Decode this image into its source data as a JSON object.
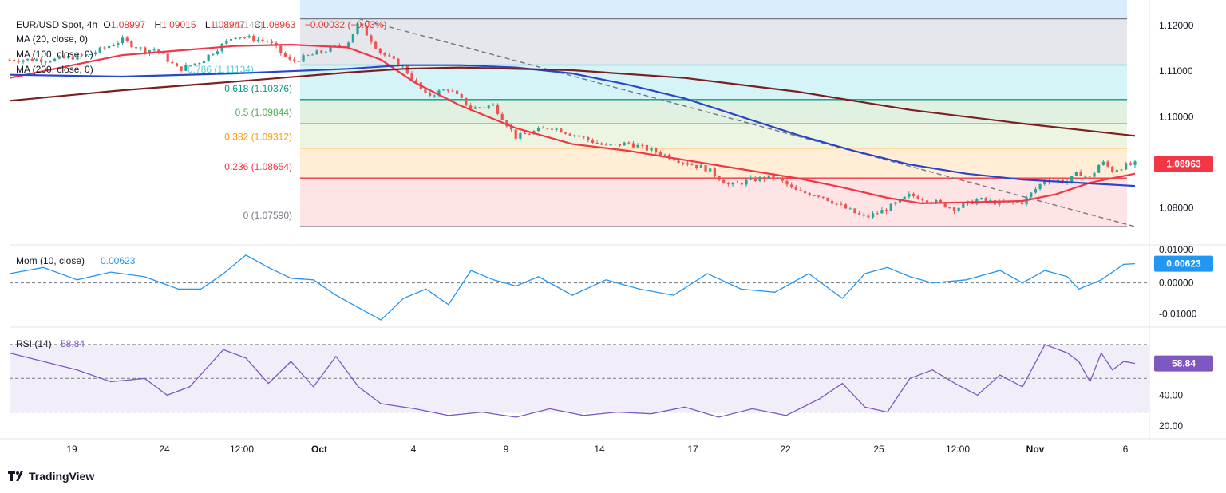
{
  "header": {
    "symbol": "EUR/USD Spot, 4h",
    "open_label": "O",
    "open": "1.08997",
    "high_label": "H",
    "high": "1.09015",
    "low_label": "L",
    "low": "1.08947",
    "close_label": "C",
    "close": "1.08963",
    "change": "−0.00032 (−0.03%)",
    "ma20": "MA (20, close, 0)",
    "ma100": "MA (100, close, 0)",
    "ma200": "MA (200, close, 0)",
    "fib_top_label": "1 (1.12148)",
    "fib_786_label": "0.786 (1.11134)"
  },
  "colors": {
    "bull": "#26a69a",
    "bear": "#ef5350",
    "ma20": "#f23645",
    "ma100": "#2a46c8",
    "ma200": "#7b1f1f",
    "momentum": "#2196f3",
    "rsi": "#7e57c2",
    "price_tag": "#f23645"
  },
  "chart_data": [
    {
      "type": "candlestick",
      "title": "EUR/USD Spot, 4h",
      "ylim": [
        1.0759,
        1.1235
      ],
      "yticks": [
        "1.12000",
        "1.11000",
        "1.10000",
        "1.09000",
        "1.08000"
      ],
      "xticks": [
        "19",
        "24",
        "12:00",
        "Oct",
        "4",
        "9",
        "14",
        "17",
        "22",
        "25",
        "12:00",
        "Nov",
        "6"
      ],
      "last_price": "1.08963",
      "fibonacci": [
        {
          "level": "1",
          "value": 1.12148,
          "label": "1 (1.12148)",
          "color": "#787b86"
        },
        {
          "level": "0.786",
          "value": 1.11134,
          "label": "0.786 (1.11134)",
          "color": "#00bcd4"
        },
        {
          "level": "0.618",
          "value": 1.10376,
          "label": "0.618 (1.10376)",
          "color": "#089981"
        },
        {
          "level": "0.5",
          "value": 1.09844,
          "label": "0.5 (1.09844)",
          "color": "#4caf50"
        },
        {
          "level": "0.382",
          "value": 1.09312,
          "label": "0.382 (1.09312)",
          "color": "#ff9800"
        },
        {
          "level": "0.236",
          "value": 1.08654,
          "label": "0.236 (1.08654)",
          "color": "#f23645"
        },
        {
          "level": "0",
          "value": 1.0759,
          "label": "0 (1.07590)",
          "color": "#787b86"
        }
      ],
      "trendline": {
        "from": [
          0.31,
          1.1215
        ],
        "to": [
          1.0,
          1.0759
        ]
      },
      "series": [
        {
          "name": "MA (20, close, 0)",
          "points": [
            [
              0,
              1.1085
            ],
            [
              0.05,
              1.111
            ],
            [
              0.1,
              1.1135
            ],
            [
              0.15,
              1.1145
            ],
            [
              0.2,
              1.1155
            ],
            [
              0.25,
              1.1158
            ],
            [
              0.3,
              1.1152
            ],
            [
              0.33,
              1.1125
            ],
            [
              0.36,
              1.1075
            ],
            [
              0.4,
              1.1025
            ],
            [
              0.45,
              1.0975
            ],
            [
              0.5,
              1.094
            ],
            [
              0.55,
              1.0925
            ],
            [
              0.6,
              1.0905
            ],
            [
              0.65,
              1.0885
            ],
            [
              0.7,
              1.0865
            ],
            [
              0.74,
              1.0845
            ],
            [
              0.78,
              1.0822
            ],
            [
              0.81,
              1.081
            ],
            [
              0.85,
              1.0812
            ],
            [
              0.9,
              1.0815
            ],
            [
              0.93,
              1.083
            ],
            [
              0.96,
              1.0855
            ],
            [
              1.0,
              1.0875
            ]
          ]
        },
        {
          "name": "MA (100, close, 0)",
          "points": [
            [
              0,
              1.1092
            ],
            [
              0.1,
              1.1088
            ],
            [
              0.2,
              1.1095
            ],
            [
              0.3,
              1.1105
            ],
            [
              0.35,
              1.1113
            ],
            [
              0.4,
              1.1113
            ],
            [
              0.45,
              1.1108
            ],
            [
              0.5,
              1.1095
            ],
            [
              0.55,
              1.107
            ],
            [
              0.6,
              1.104
            ],
            [
              0.65,
              1.1
            ],
            [
              0.7,
              1.096
            ],
            [
              0.75,
              1.0925
            ],
            [
              0.8,
              1.0895
            ],
            [
              0.85,
              1.0875
            ],
            [
              0.9,
              1.0862
            ],
            [
              0.95,
              1.0855
            ],
            [
              1.0,
              1.0848
            ]
          ]
        },
        {
          "name": "MA (200, close, 0)",
          "points": [
            [
              0,
              1.1035
            ],
            [
              0.1,
              1.1058
            ],
            [
              0.2,
              1.1077
            ],
            [
              0.3,
              1.1097
            ],
            [
              0.35,
              1.1105
            ],
            [
              0.4,
              1.1108
            ],
            [
              0.5,
              1.1102
            ],
            [
              0.6,
              1.1085
            ],
            [
              0.7,
              1.1055
            ],
            [
              0.8,
              1.1015
            ],
            [
              0.9,
              1.0985
            ],
            [
              1.0,
              1.0958
            ]
          ]
        }
      ],
      "candle_path": [
        [
          0,
          1.1125
        ],
        [
          0.04,
          1.1125
        ],
        [
          0.07,
          1.1135
        ],
        [
          0.1,
          1.1168
        ],
        [
          0.12,
          1.1145
        ],
        [
          0.13,
          1.1148
        ],
        [
          0.15,
          1.1103
        ],
        [
          0.17,
          1.1122
        ],
        [
          0.2,
          1.1178
        ],
        [
          0.23,
          1.1165
        ],
        [
          0.25,
          1.112
        ],
        [
          0.28,
          1.1145
        ],
        [
          0.3,
          1.116
        ],
        [
          0.31,
          1.1205
        ],
        [
          0.33,
          1.114
        ],
        [
          0.35,
          1.1108
        ],
        [
          0.37,
          1.1045
        ],
        [
          0.39,
          1.1062
        ],
        [
          0.41,
          1.1018
        ],
        [
          0.43,
          1.1025
        ],
        [
          0.45,
          1.0955
        ],
        [
          0.48,
          1.0978
        ],
        [
          0.5,
          1.0962
        ],
        [
          0.53,
          1.0935
        ],
        [
          0.55,
          1.0942
        ],
        [
          0.58,
          1.0918
        ],
        [
          0.6,
          1.09
        ],
        [
          0.62,
          1.0885
        ],
        [
          0.64,
          1.0848
        ],
        [
          0.66,
          1.0862
        ],
        [
          0.68,
          1.0868
        ],
        [
          0.7,
          1.0835
        ],
        [
          0.72,
          1.0828
        ],
        [
          0.74,
          1.0802
        ],
        [
          0.76,
          1.0778
        ],
        [
          0.78,
          1.0798
        ],
        [
          0.8,
          1.0828
        ],
        [
          0.82,
          1.0815
        ],
        [
          0.84,
          1.0798
        ],
        [
          0.86,
          1.0818
        ],
        [
          0.88,
          1.081
        ],
        [
          0.9,
          1.0812
        ],
        [
          0.92,
          1.0862
        ],
        [
          0.94,
          1.0858
        ],
        [
          0.95,
          1.0878
        ],
        [
          0.96,
          1.0865
        ],
        [
          0.97,
          1.0902
        ],
        [
          0.98,
          1.0882
        ],
        [
          0.99,
          1.0892
        ],
        [
          1.0,
          1.0896
        ]
      ]
    },
    {
      "type": "line",
      "name": "Mom (10, close)",
      "value_label": "0.00623",
      "ylim": [
        -0.013,
        0.011
      ],
      "yticks": [
        "0.01000",
        "0.00000",
        "-0.01000"
      ],
      "zero_line": 0,
      "values": [
        [
          0,
          0.003
        ],
        [
          0.03,
          0.005
        ],
        [
          0.06,
          0.001
        ],
        [
          0.09,
          0.0035
        ],
        [
          0.12,
          0.002
        ],
        [
          0.15,
          -0.002
        ],
        [
          0.17,
          -0.002
        ],
        [
          0.19,
          0.003
        ],
        [
          0.21,
          0.009
        ],
        [
          0.23,
          0.005
        ],
        [
          0.25,
          0.0015
        ],
        [
          0.27,
          0.001
        ],
        [
          0.29,
          -0.004
        ],
        [
          0.31,
          -0.008
        ],
        [
          0.33,
          -0.012
        ],
        [
          0.35,
          -0.005
        ],
        [
          0.37,
          -0.002
        ],
        [
          0.39,
          -0.007
        ],
        [
          0.41,
          0.004
        ],
        [
          0.43,
          0.001
        ],
        [
          0.45,
          -0.001
        ],
        [
          0.47,
          0.002
        ],
        [
          0.5,
          -0.004
        ],
        [
          0.53,
          0.001
        ],
        [
          0.56,
          -0.002
        ],
        [
          0.59,
          -0.004
        ],
        [
          0.62,
          0.003
        ],
        [
          0.65,
          -0.002
        ],
        [
          0.68,
          -0.003
        ],
        [
          0.71,
          0.003
        ],
        [
          0.74,
          -0.005
        ],
        [
          0.76,
          0.003
        ],
        [
          0.78,
          0.005
        ],
        [
          0.8,
          0.002
        ],
        [
          0.82,
          0.0
        ],
        [
          0.85,
          0.001
        ],
        [
          0.88,
          0.004
        ],
        [
          0.9,
          0.0
        ],
        [
          0.92,
          0.004
        ],
        [
          0.94,
          0.002
        ],
        [
          0.95,
          -0.002
        ],
        [
          0.97,
          0.001
        ],
        [
          0.99,
          0.006
        ],
        [
          1.0,
          0.0062
        ]
      ]
    },
    {
      "type": "line",
      "name": "RSI (14)",
      "value_label": "58.84",
      "ylim": [
        18,
        78
      ],
      "yticks": [
        "40.00",
        "20.00"
      ],
      "bands": [
        70,
        50,
        30
      ],
      "values": [
        [
          0,
          65
        ],
        [
          0.03,
          60
        ],
        [
          0.06,
          55
        ],
        [
          0.09,
          48
        ],
        [
          0.12,
          50
        ],
        [
          0.14,
          40
        ],
        [
          0.16,
          45
        ],
        [
          0.19,
          67
        ],
        [
          0.21,
          62
        ],
        [
          0.23,
          47
        ],
        [
          0.25,
          60
        ],
        [
          0.27,
          45
        ],
        [
          0.29,
          63
        ],
        [
          0.31,
          45
        ],
        [
          0.33,
          35
        ],
        [
          0.36,
          32
        ],
        [
          0.39,
          28
        ],
        [
          0.42,
          30
        ],
        [
          0.45,
          27
        ],
        [
          0.48,
          32
        ],
        [
          0.51,
          28
        ],
        [
          0.54,
          30
        ],
        [
          0.57,
          29
        ],
        [
          0.6,
          33
        ],
        [
          0.63,
          27
        ],
        [
          0.66,
          32
        ],
        [
          0.69,
          28
        ],
        [
          0.72,
          38
        ],
        [
          0.74,
          47
        ],
        [
          0.76,
          33
        ],
        [
          0.78,
          30
        ],
        [
          0.8,
          50
        ],
        [
          0.82,
          55
        ],
        [
          0.84,
          47
        ],
        [
          0.86,
          40
        ],
        [
          0.88,
          52
        ],
        [
          0.9,
          45
        ],
        [
          0.92,
          70
        ],
        [
          0.94,
          65
        ],
        [
          0.95,
          60
        ],
        [
          0.96,
          48
        ],
        [
          0.97,
          65
        ],
        [
          0.98,
          55
        ],
        [
          0.99,
          60
        ],
        [
          1.0,
          58.8
        ]
      ]
    }
  ]
}
